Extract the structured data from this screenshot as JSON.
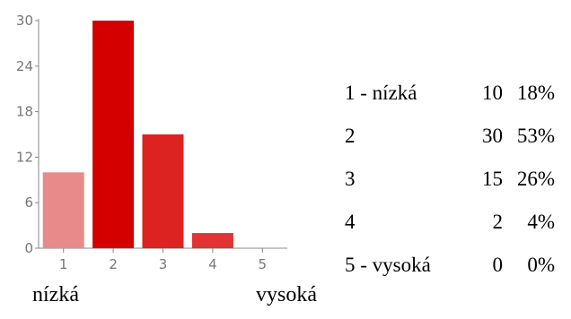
{
  "chart_data": {
    "type": "bar",
    "categories": [
      "1",
      "2",
      "3",
      "4",
      "5"
    ],
    "values": [
      10,
      30,
      15,
      2,
      0
    ],
    "ylim": [
      0,
      30
    ],
    "yticks": [
      "0",
      "6",
      "12",
      "18",
      "24",
      "30"
    ],
    "colors": [
      "#e98a8a",
      "#d40000",
      "#dd2222",
      "#e23333",
      "#e23333"
    ],
    "grid": false,
    "legend": "none"
  },
  "summary": {
    "rows": [
      {
        "label": "1 - nízká",
        "count": "10",
        "percent": "18%"
      },
      {
        "label": "2",
        "count": "30",
        "percent": "53%"
      },
      {
        "label": "3",
        "count": "15",
        "percent": "26%"
      },
      {
        "label": "4",
        "count": "2",
        "percent": "4%"
      },
      {
        "label": "5 - vysoká",
        "count": "0",
        "percent": "0%"
      }
    ]
  },
  "scale": {
    "low_label": "nízká",
    "high_label": "vysoká"
  }
}
